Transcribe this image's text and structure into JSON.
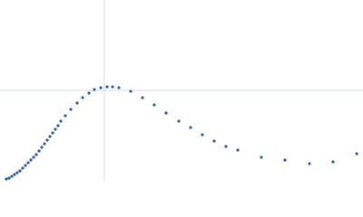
{
  "chart_data": {
    "type": "scatter",
    "x": [
      7,
      10,
      13,
      16,
      19,
      22,
      25,
      28,
      31,
      34,
      37,
      40,
      43,
      46,
      49,
      52,
      55,
      58,
      61,
      64,
      67,
      72,
      78,
      85,
      91,
      98,
      104,
      111,
      118,
      124,
      131,
      144,
      157,
      170,
      183,
      197,
      210,
      223,
      236,
      249,
      262,
      288,
      314,
      341,
      367,
      393
    ],
    "values": [
      2,
      3,
      5,
      7,
      9,
      11,
      14,
      17,
      20,
      23,
      26,
      29,
      33,
      37,
      41,
      45,
      49,
      53,
      57,
      61,
      66,
      72,
      79,
      86,
      92,
      97,
      101,
      103,
      104,
      104,
      103,
      99,
      92,
      84,
      75,
      66,
      59,
      51,
      44,
      38,
      34,
      26,
      23,
      19,
      21,
      30
    ],
    "color": "#2f5f9e",
    "xlim": [
      0,
      400
    ],
    "ylim": [
      0,
      200
    ],
    "reference_lines": {
      "x": 115,
      "y": 100,
      "color": "#d3d8e0"
    }
  }
}
